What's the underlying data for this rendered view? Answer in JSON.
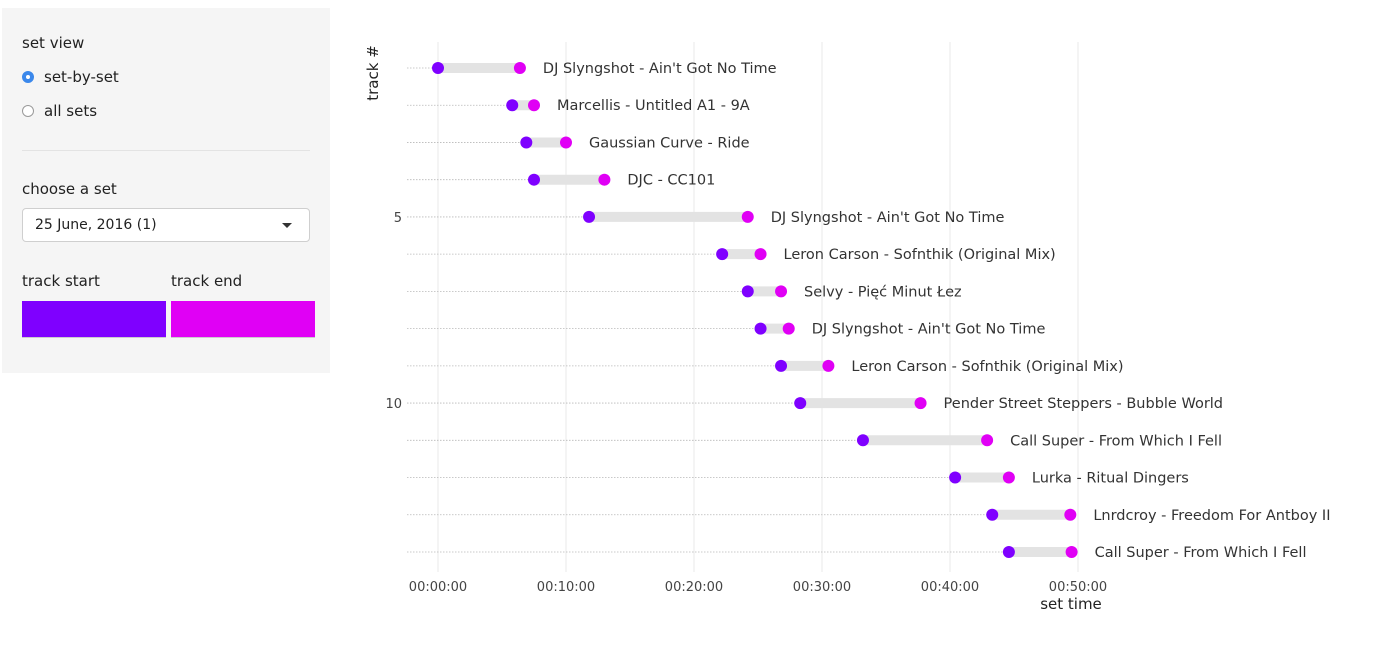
{
  "sidebar": {
    "set_view_label": "set view",
    "options": [
      {
        "label": "set-by-set",
        "checked": true
      },
      {
        "label": "all sets",
        "checked": false
      }
    ],
    "choose_set_label": "choose a set",
    "selected_set": "25 June, 2016 (1)",
    "track_start_label": "track start",
    "track_end_label": "track end",
    "track_start_color": "#7f00ff",
    "track_end_color": "#e000f5"
  },
  "chart_data": {
    "type": "dumbbell",
    "xlabel": "set time",
    "ylabel": "track #",
    "xlim_minutes": [
      -2.4,
      54
    ],
    "x_ticks": [
      "00:00:00",
      "00:10:00",
      "00:20:00",
      "00:30:00",
      "00:40:00",
      "00:50:00"
    ],
    "y_ticks": [
      5,
      10
    ],
    "start_color": "#7f00ff",
    "end_color": "#e000f5",
    "tracks": [
      {
        "n": 1,
        "start": 0.0,
        "end": 6.4,
        "label": "DJ Slyngshot - Ain't Got No Time"
      },
      {
        "n": 2,
        "start": 5.8,
        "end": 7.5,
        "label": "Marcellis - Untitled A1 - 9A"
      },
      {
        "n": 3,
        "start": 6.9,
        "end": 10.0,
        "label": "Gaussian Curve - Ride"
      },
      {
        "n": 4,
        "start": 7.5,
        "end": 13.0,
        "label": "DJC - CC101"
      },
      {
        "n": 5,
        "start": 11.8,
        "end": 24.2,
        "label": "DJ Slyngshot - Ain't Got No Time"
      },
      {
        "n": 6,
        "start": 22.2,
        "end": 25.2,
        "label": "Leron Carson - Sofnthik (Original Mix)"
      },
      {
        "n": 7,
        "start": 24.2,
        "end": 26.8,
        "label": "Selvy - Pięć Minut Łez"
      },
      {
        "n": 8,
        "start": 25.2,
        "end": 27.4,
        "label": "DJ Slyngshot - Ain't Got No Time"
      },
      {
        "n": 9,
        "start": 26.8,
        "end": 30.5,
        "label": "Leron Carson - Sofnthik (Original Mix)"
      },
      {
        "n": 10,
        "start": 28.3,
        "end": 37.7,
        "label": "Pender Street Steppers - Bubble World"
      },
      {
        "n": 11,
        "start": 33.2,
        "end": 42.9,
        "label": "Call Super - From Which I Fell"
      },
      {
        "n": 12,
        "start": 40.4,
        "end": 44.6,
        "label": "Lurka - Ritual Dingers"
      },
      {
        "n": 13,
        "start": 43.3,
        "end": 49.4,
        "label": "Lnrdcroy - Freedom For Antboy II"
      },
      {
        "n": 14,
        "start": 44.6,
        "end": 49.5,
        "label": "Call Super - From Which I Fell"
      }
    ]
  }
}
